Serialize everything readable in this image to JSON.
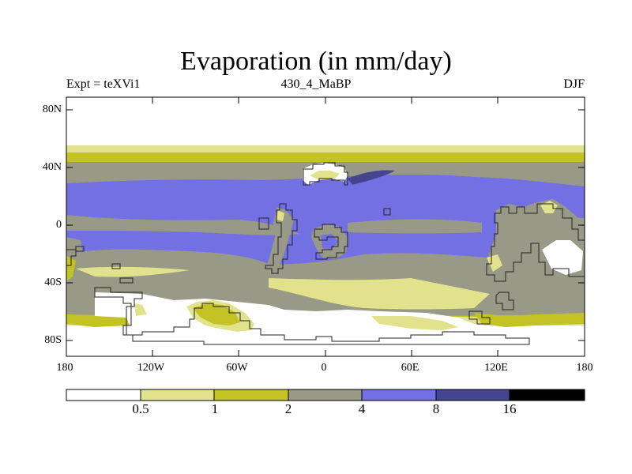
{
  "title": "Evaporation (in mm/day)",
  "subtitle_left": "Expt = teXVi1",
  "subtitle_center": "430_4_MaBP",
  "subtitle_right": "DJF",
  "lat_labels": [
    "80N",
    "40N",
    "0",
    "40S",
    "80S"
  ],
  "lon_labels": [
    "180",
    "120W",
    "60W",
    "0",
    "60E",
    "120E",
    "180"
  ],
  "colorbar": {
    "labels": [
      "0.5",
      "1",
      "2",
      "4",
      "8",
      "16"
    ],
    "colors": [
      "#ffffff",
      "#e2e28c",
      "#c3c326",
      "#999987",
      "#7270e2",
      "#45458f",
      "#000000"
    ]
  }
}
